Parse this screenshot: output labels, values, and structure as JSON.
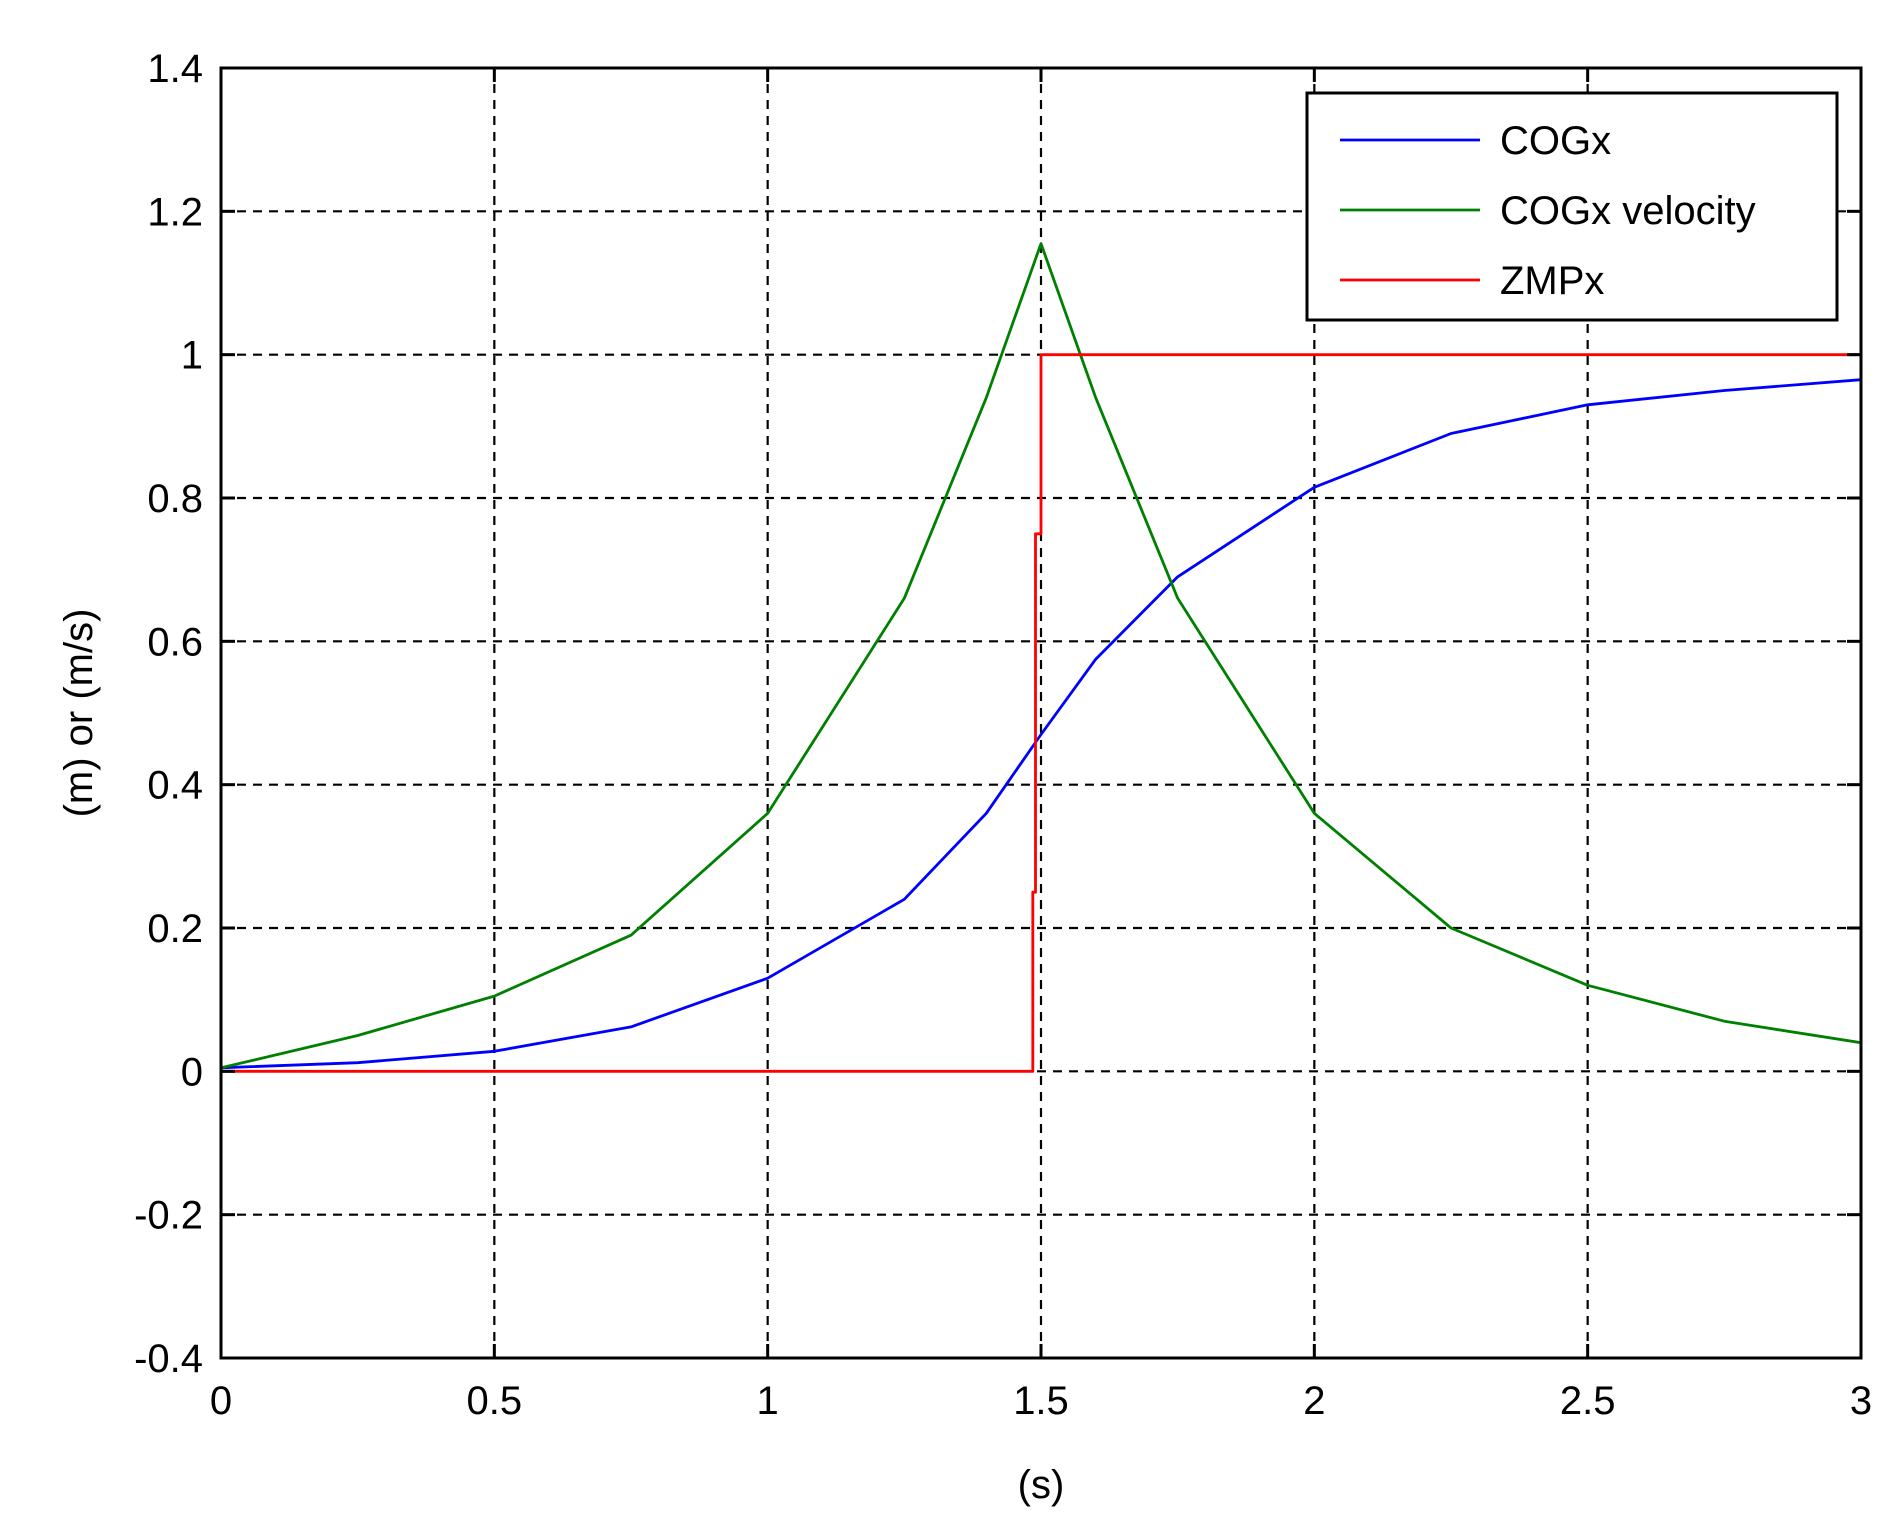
{
  "chart_data": {
    "type": "line",
    "title": "",
    "xlabel": "(s)",
    "ylabel": "(m) or (m/s)",
    "xlim": [
      0,
      3
    ],
    "ylim": [
      -0.4,
      1.4
    ],
    "xticks": [
      0,
      0.5,
      1,
      1.5,
      2,
      2.5,
      3
    ],
    "xtick_labels": [
      "0",
      "0.5",
      "1",
      "1.5",
      "2",
      "2.5",
      "3"
    ],
    "yticks": [
      -0.4,
      -0.2,
      0,
      0.2,
      0.4,
      0.6,
      0.8,
      1,
      1.2,
      1.4
    ],
    "ytick_labels": [
      "-0.4",
      "-0.2",
      "0",
      "0.2",
      "0.4",
      "0.6",
      "0.8",
      "1",
      "1.2",
      "1.4"
    ],
    "grid": true,
    "legend_position": "top-right",
    "series": [
      {
        "name": "COGx",
        "color": "#0000ff",
        "x": [
          0,
          0.25,
          0.5,
          0.75,
          1.0,
          1.25,
          1.4,
          1.5,
          1.6,
          1.75,
          2.0,
          2.25,
          2.5,
          2.75,
          3.0
        ],
        "y": [
          0.005,
          0.012,
          0.028,
          0.062,
          0.13,
          0.24,
          0.36,
          0.47,
          0.575,
          0.69,
          0.815,
          0.89,
          0.93,
          0.95,
          0.965
        ]
      },
      {
        "name": "COGx velocity",
        "color": "#008000",
        "x": [
          0,
          0.25,
          0.5,
          0.75,
          1.0,
          1.25,
          1.4,
          1.5,
          1.6,
          1.75,
          2.0,
          2.25,
          2.5,
          2.75,
          3.0
        ],
        "y": [
          0.005,
          0.05,
          0.105,
          0.19,
          0.36,
          0.66,
          0.94,
          1.155,
          0.94,
          0.66,
          0.36,
          0.2,
          0.12,
          0.07,
          0.04
        ]
      },
      {
        "name": "ZMPx",
        "color": "#ff0000",
        "x": [
          0,
          1.485,
          1.485,
          1.49,
          1.49,
          1.495,
          1.495,
          1.5,
          1.5,
          3.0
        ],
        "y": [
          0,
          0,
          0.25,
          0.25,
          0.75,
          0.75,
          0.75,
          0.75,
          1.0,
          1.0
        ]
      }
    ]
  }
}
